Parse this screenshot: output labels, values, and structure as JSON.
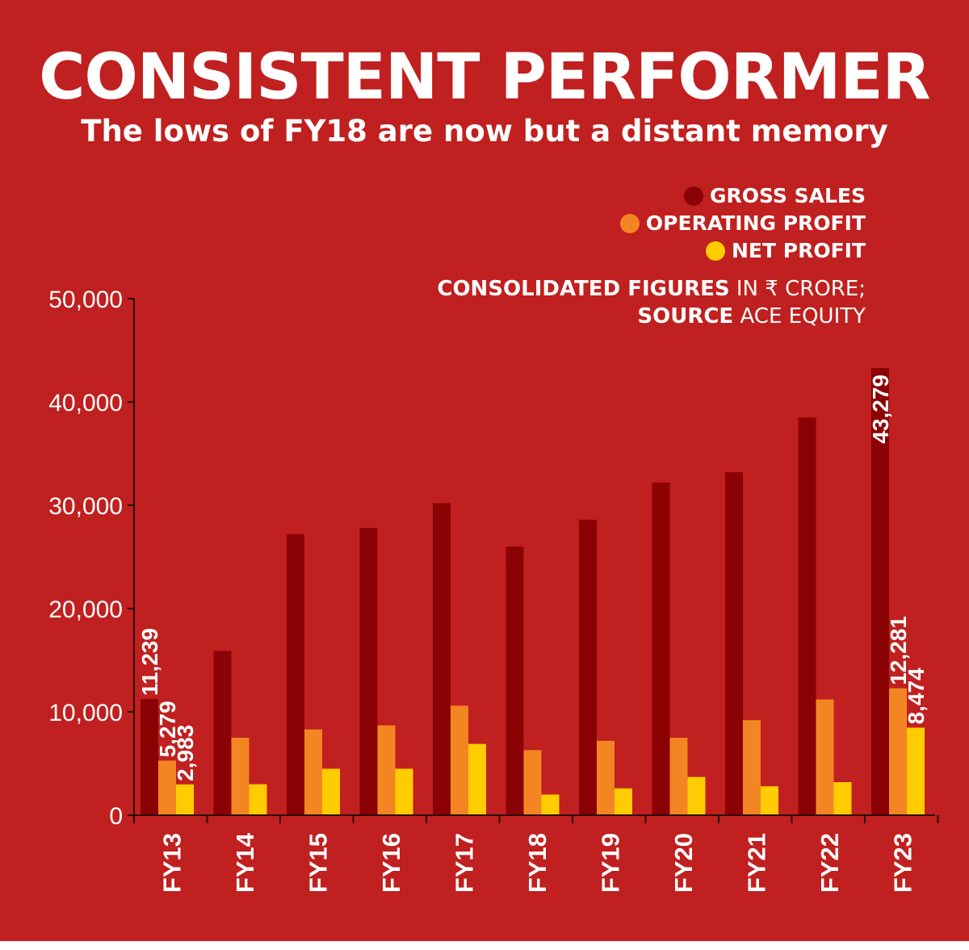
{
  "colors": {
    "background": "#c0201f",
    "gross_sales": "#8b0205",
    "operating_profit": "#f48523",
    "net_profit": "#ffcc02",
    "text": "#ffffff",
    "axis": "#2a0a0a"
  },
  "header": {
    "title": "CONSISTENT PERFORMER",
    "subtitle": "The lows of FY18 are now but a distant memory"
  },
  "legend": {
    "items": [
      {
        "label": "GROSS SALES",
        "color": "#8b0205"
      },
      {
        "label": "OPERATING PROFIT",
        "color": "#f48523"
      },
      {
        "label": "NET PROFIT",
        "color": "#ffcc02"
      }
    ]
  },
  "note": {
    "line1_bold": "CONSOLIDATED FIGURES",
    "line1_rest": " IN ₹ CRORE;",
    "line2_bold": "SOURCE",
    "line2_rest": " ACE EQUITY"
  },
  "chart_data": {
    "type": "bar",
    "categories": [
      "FY13",
      "FY14",
      "FY15",
      "FY16",
      "FY17",
      "FY18",
      "FY19",
      "FY20",
      "FY21",
      "FY22",
      "FY23"
    ],
    "series": [
      {
        "name": "GROSS SALES",
        "values": [
          11239,
          15900,
          27200,
          27800,
          30200,
          26000,
          28600,
          32200,
          33200,
          38500,
          43279
        ]
      },
      {
        "name": "OPERATING PROFIT",
        "values": [
          5279,
          7500,
          8300,
          8700,
          10600,
          6300,
          7200,
          7500,
          9200,
          11200,
          12281
        ]
      },
      {
        "name": "NET PROFIT",
        "values": [
          2983,
          3000,
          4500,
          4500,
          6900,
          2000,
          2600,
          3700,
          2800,
          3200,
          8474
        ]
      }
    ],
    "ylim": [
      0,
      50000
    ],
    "y_ticks": [
      "0",
      "10,000",
      "20,000",
      "30,000",
      "40,000",
      "50,000"
    ],
    "data_labels": [
      {
        "series": 0,
        "index": 0,
        "text": "11,239"
      },
      {
        "series": 1,
        "index": 0,
        "text": "5,279"
      },
      {
        "series": 2,
        "index": 0,
        "text": "2,983"
      },
      {
        "series": 0,
        "index": 10,
        "text": "43,279"
      },
      {
        "series": 1,
        "index": 10,
        "text": "12,281"
      },
      {
        "series": 2,
        "index": 10,
        "text": "8,474"
      }
    ],
    "grid": false,
    "legend_position": "top-right"
  }
}
